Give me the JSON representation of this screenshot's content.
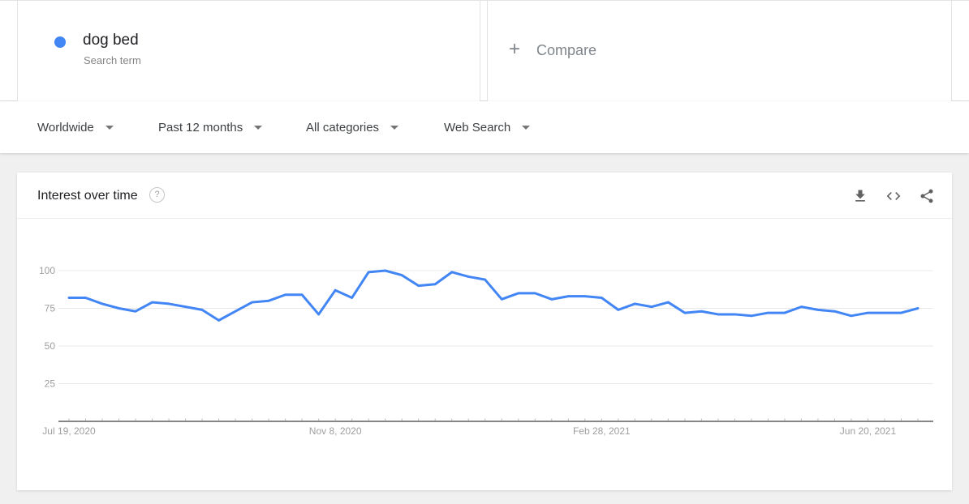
{
  "term_card": {
    "term": "dog bed",
    "subtitle": "Search term",
    "dot_color": "#4285f4"
  },
  "compare_card": {
    "plus": "+",
    "label": "Compare"
  },
  "filter_bar": {
    "items": [
      {
        "label": "Worldwide"
      },
      {
        "label": "Past 12 months"
      },
      {
        "label": "All categories"
      },
      {
        "label": "Web Search"
      }
    ]
  },
  "widget": {
    "title": "Interest over time",
    "help": "?",
    "icons": [
      "download-icon",
      "embed-icon",
      "share-icon"
    ]
  },
  "chart_data": {
    "type": "line",
    "title": "Interest over time",
    "grid": true,
    "x_axis": {
      "tick_labels": [
        "Jul 19, 2020",
        "Nov 8, 2020",
        "Feb 28, 2021",
        "Jun 20, 2021"
      ],
      "tick_indices": [
        0,
        16,
        32,
        48
      ]
    },
    "y_axis": {
      "ticks": [
        25,
        50,
        75,
        100
      ],
      "range": [
        0,
        100
      ]
    },
    "series": [
      {
        "name": "dog bed",
        "color": "#4285f4",
        "values": [
          82,
          82,
          78,
          75,
          73,
          79,
          78,
          76,
          74,
          67,
          73,
          79,
          80,
          84,
          84,
          71,
          87,
          82,
          99,
          100,
          97,
          90,
          91,
          99,
          96,
          94,
          81,
          85,
          85,
          81,
          83,
          83,
          82,
          74,
          78,
          76,
          79,
          72,
          73,
          71,
          71,
          70,
          72,
          72,
          76,
          74,
          73,
          70,
          72,
          72,
          72,
          75
        ]
      }
    ],
    "colors": {
      "line": "#4285f4",
      "gridline": "#e8e8e8",
      "axis": "#757575",
      "axis_label": "#9e9e9e"
    }
  }
}
